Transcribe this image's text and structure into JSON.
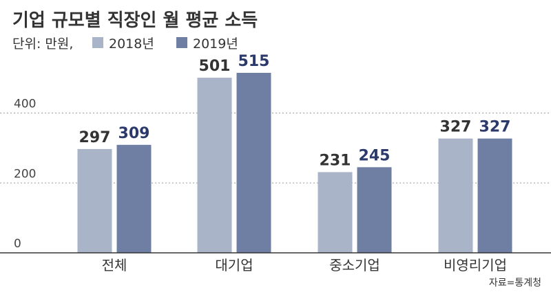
{
  "title": "기업 규모별 직장인 월 평균 소득",
  "unit_label": "단위: 만원,",
  "source": "자료=통계청",
  "colors": {
    "series_2018": "#aab4c8",
    "series_2019": "#6f7fa3",
    "label_2018": "#333333",
    "label_2019": "#2b3a6b",
    "grid": "#999999",
    "axis": "#333333"
  },
  "chart_data": {
    "type": "bar",
    "categories": [
      "전체",
      "대기업",
      "중소기업",
      "비영리기업"
    ],
    "series": [
      {
        "name": "2018년",
        "values": [
          297,
          501,
          231,
          327
        ]
      },
      {
        "name": "2019년",
        "values": [
          309,
          515,
          245,
          327
        ]
      }
    ],
    "yticks": [
      "0",
      "200",
      "400"
    ],
    "ylim": [
      0,
      515
    ],
    "grid": true,
    "legend": "top-left",
    "xlabel": "",
    "ylabel": ""
  }
}
